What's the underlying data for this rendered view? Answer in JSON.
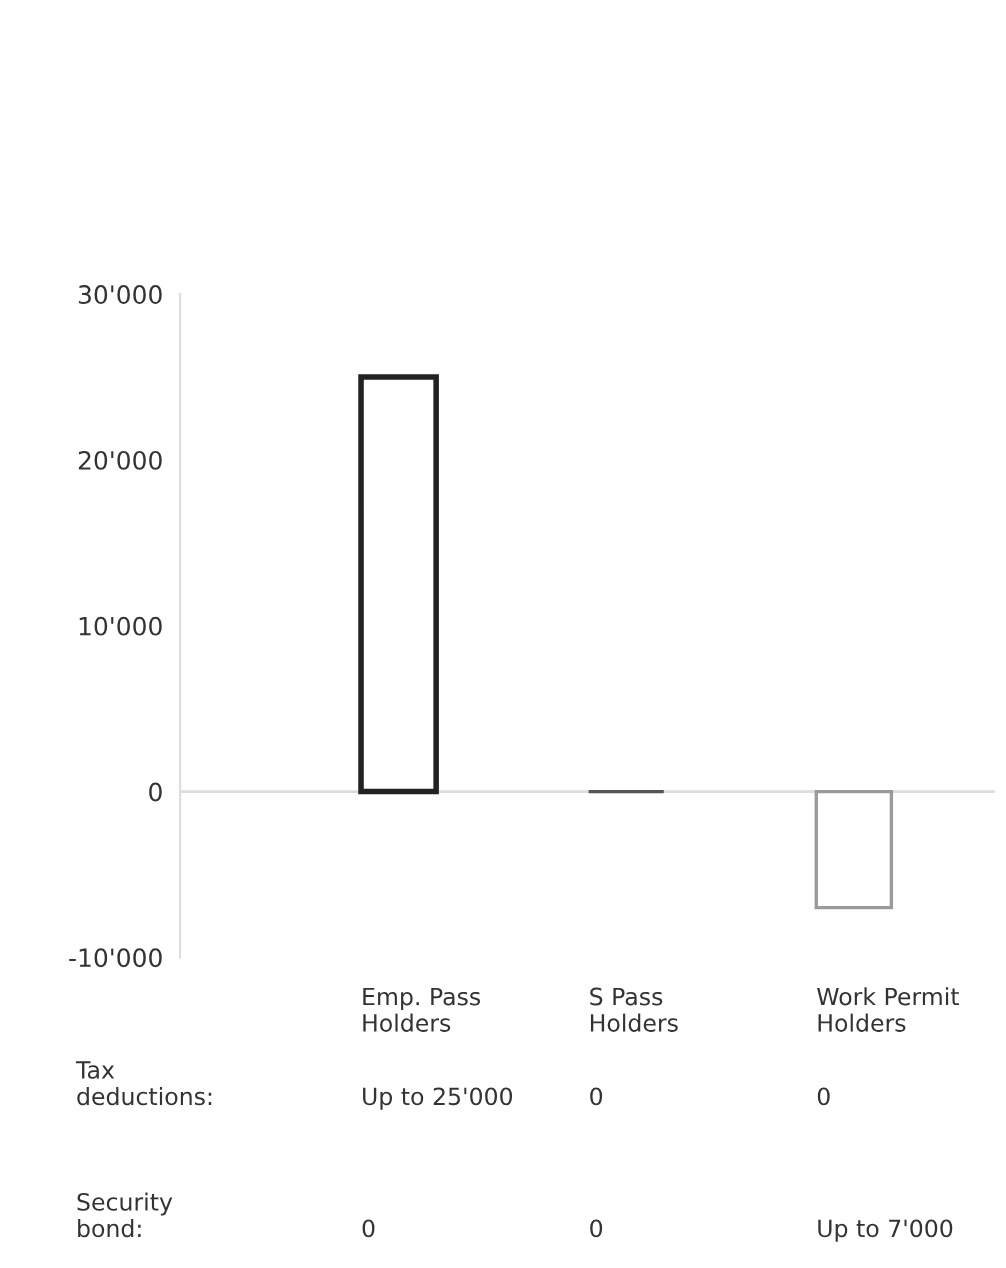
{
  "chart_data": {
    "type": "bar",
    "categories": [
      "Emp. Pass\nHolders",
      "S Pass\nHolders",
      "Work Permit\nHolders"
    ],
    "values": [
      25000,
      0,
      -7000
    ],
    "colors": [
      "#222222",
      "#555555",
      "#9a9a9a"
    ],
    "ylim": [
      -10000,
      30000
    ],
    "yticks": [
      {
        "value": -10000,
        "label": "-10'000"
      },
      {
        "value": 0,
        "label": "0"
      },
      {
        "value": 10000,
        "label": "10'000"
      },
      {
        "value": 20000,
        "label": "20'000"
      },
      {
        "value": 30000,
        "label": "30'000"
      }
    ],
    "ref_lines": [
      {
        "axis": "y",
        "value": 0,
        "color": "#dddddd"
      }
    ],
    "annotations": [
      "Tax\ndeductions:",
      "Up to 25'000",
      "0",
      "0",
      "Security\nbond:",
      "0",
      "0",
      "Up to 7'000"
    ],
    "grid": false,
    "legend": false
  }
}
